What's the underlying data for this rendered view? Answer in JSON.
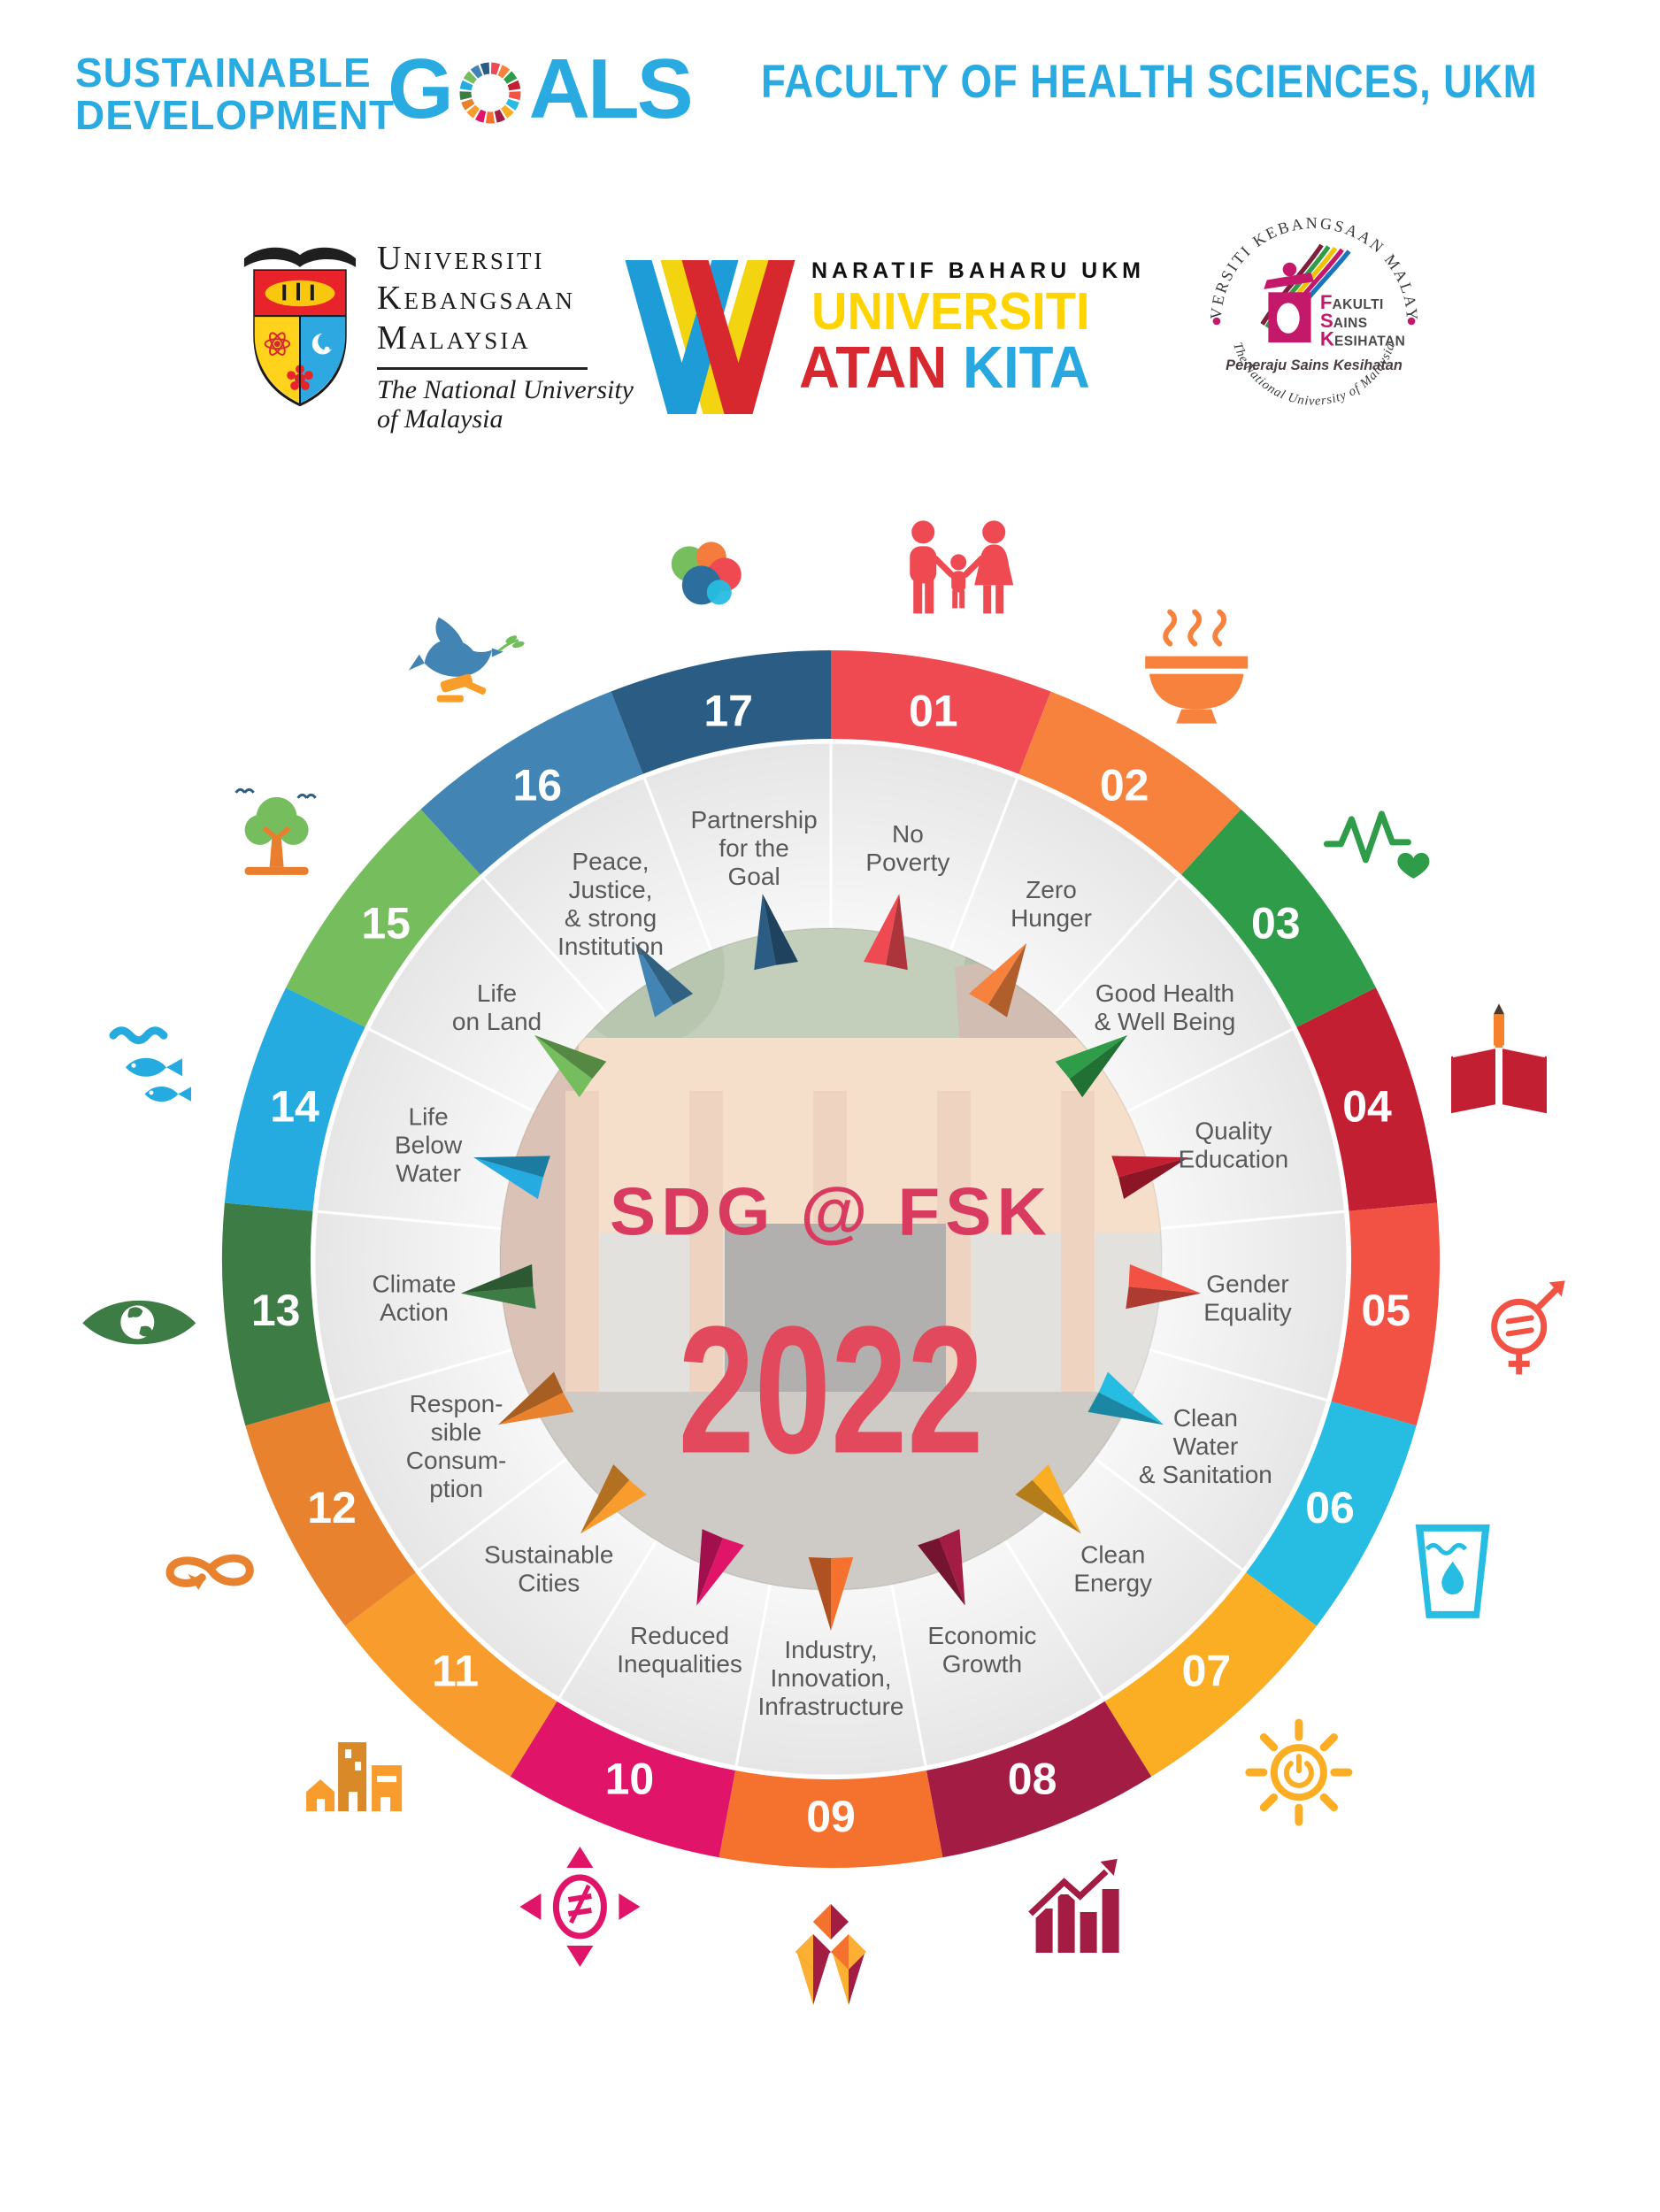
{
  "header": {
    "brand_line1": "SUSTAINABLE",
    "brand_line2": "DEVELOPMENT",
    "goals_g": "G",
    "goals_rest": "ALS",
    "faculty_title": "FACULTY OF HEALTH SCIENCES, UKM"
  },
  "logos": {
    "ukm": {
      "line1": "Universiti",
      "line2": "Kebangsaan",
      "line3": "Malaysia",
      "sub1": "The National University",
      "sub2": "of Malaysia"
    },
    "watan": {
      "tagline": "NARATIF BAHARU UKM",
      "word1": "UNIVERSITI",
      "word2_red": "ATAN",
      "word2_blue": "KITA"
    },
    "fsk_seal": {
      "arc_top": "UNIVERSITI KEBANGSAAN MALAYSIA",
      "arc_bottom": "The National University of Malaysia",
      "center_line1": "FAKULTI",
      "center_line2": "SAINS",
      "center_line3": "KESIHATAN",
      "slogan": "Peneraju Sains Kesihatan"
    }
  },
  "colors": {
    "accent_blue": "#29ABE2",
    "label_gray": "#58595B",
    "center_title": "#D93B60",
    "center_year": "#E2495C"
  },
  "wheel": {
    "center_title": "SDG @ FSK",
    "center_year": "2022",
    "items": [
      {
        "num": "01",
        "label": "No\nPoverty",
        "color": "#EF4A52",
        "icon": "family-icon"
      },
      {
        "num": "02",
        "label": "Zero\nHunger",
        "color": "#F6823E",
        "icon": "bowl-icon"
      },
      {
        "num": "03",
        "label": "Good Health\n& Well Being",
        "color": "#2E9C48",
        "icon": "heartbeat-icon"
      },
      {
        "num": "04",
        "label": "Quality\nEducation",
        "color": "#C31F33",
        "icon": "book-icon"
      },
      {
        "num": "05",
        "label": "Gender\nEquality",
        "color": "#F25244",
        "icon": "gender-icon"
      },
      {
        "num": "06",
        "label": "Clean\nWater\n& Sanitation",
        "color": "#27BCE1",
        "icon": "water-glass-icon"
      },
      {
        "num": "07",
        "label": "Clean\nEnergy",
        "color": "#FBAE24",
        "icon": "sun-icon"
      },
      {
        "num": "08",
        "label": "Economic\nGrowth",
        "color": "#A21C44",
        "icon": "growth-chart-icon"
      },
      {
        "num": "09",
        "label": "Industry,\nInnovation,\nInfrastructure",
        "color": "#F4712E",
        "icon": "cubes-icon"
      },
      {
        "num": "10",
        "label": "Reduced\nInequalities",
        "color": "#E0156A",
        "icon": "equality-icon"
      },
      {
        "num": "11",
        "label": "Sustainable\nCities",
        "color": "#F89C2D",
        "icon": "city-icon"
      },
      {
        "num": "12",
        "label": "Respon-\nsible\nConsum-\nption",
        "color": "#E8822F",
        "icon": "infinity-icon"
      },
      {
        "num": "13",
        "label": "Climate\nAction",
        "color": "#3E7C45",
        "icon": "eye-earth-icon"
      },
      {
        "num": "14",
        "label": "Life\nBelow\nWater",
        "color": "#25ABE0",
        "icon": "fish-icon"
      },
      {
        "num": "15",
        "label": "Life\non Land",
        "color": "#76BD5D",
        "icon": "tree-icon"
      },
      {
        "num": "16",
        "label": "Peace,\nJustice,\n& strong\nInstitution",
        "color": "#4285B4",
        "icon": "dove-icon"
      },
      {
        "num": "17",
        "label": "Partnership\nfor the\nGoal",
        "color": "#2B5C83",
        "icon": "partnership-icon"
      }
    ]
  }
}
